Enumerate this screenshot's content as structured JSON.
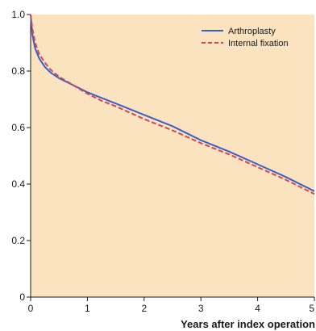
{
  "chart_data": {
    "type": "line",
    "title": "",
    "xlabel": "Years after index operation",
    "ylabel": "",
    "xlim": [
      0,
      5
    ],
    "ylim": [
      0,
      1.0
    ],
    "x_ticks": [
      0,
      1,
      2,
      3,
      4,
      5
    ],
    "y_ticks": [
      0,
      0.2,
      0.4,
      0.6,
      0.8,
      1.0
    ],
    "x_tick_labels": [
      "0",
      "1",
      "2",
      "3",
      "4",
      "5"
    ],
    "y_tick_labels": [
      "0",
      "0.2",
      "0.4",
      "0.6",
      "0.8",
      "1.0"
    ],
    "grid": false,
    "legend_position": "top-right",
    "background_color": "#fbe3c0",
    "series": [
      {
        "name": "Arthroplasty",
        "color": "#3a5fc8",
        "style": "solid",
        "x": [
          0,
          0.03,
          0.08,
          0.15,
          0.25,
          0.35,
          0.5,
          0.75,
          1.0,
          1.25,
          1.5,
          2.0,
          2.5,
          3.0,
          3.5,
          4.0,
          4.5,
          5.0
        ],
        "y": [
          1.0,
          0.93,
          0.88,
          0.845,
          0.815,
          0.795,
          0.775,
          0.75,
          0.725,
          0.705,
          0.685,
          0.645,
          0.605,
          0.555,
          0.515,
          0.47,
          0.425,
          0.375
        ]
      },
      {
        "name": "Internal fixation",
        "color": "#d0474f",
        "style": "dashed",
        "x": [
          0,
          0.03,
          0.08,
          0.15,
          0.25,
          0.35,
          0.5,
          0.75,
          1.0,
          1.25,
          1.5,
          2.0,
          2.5,
          3.0,
          3.5,
          4.0,
          4.5,
          5.0
        ],
        "y": [
          1.0,
          0.95,
          0.9,
          0.86,
          0.83,
          0.805,
          0.78,
          0.75,
          0.72,
          0.695,
          0.675,
          0.63,
          0.59,
          0.545,
          0.505,
          0.46,
          0.415,
          0.365
        ]
      }
    ]
  }
}
